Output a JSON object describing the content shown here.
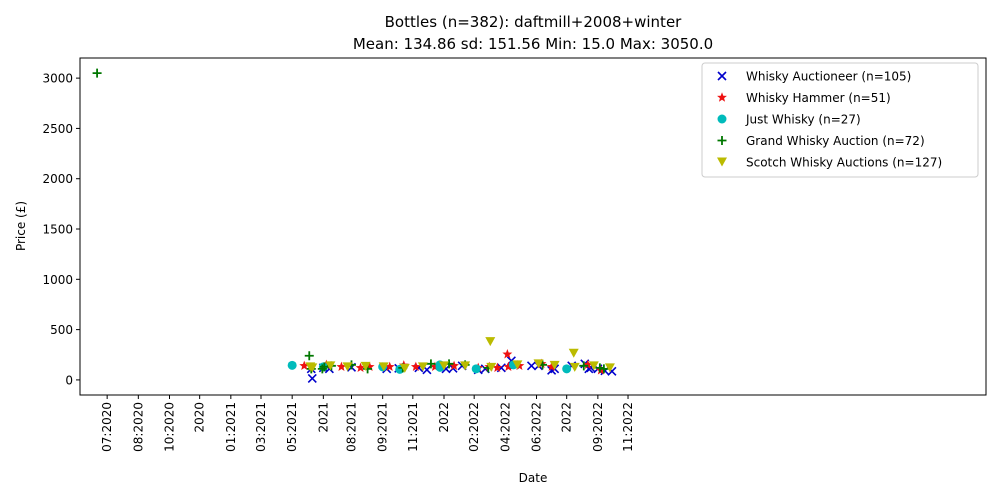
{
  "chart_data": {
    "type": "scatter",
    "title": "Bottles (n=382): daftmill+2008+winter",
    "subtitle": "Mean: 134.86   sd: 151.56   Min: 15.0   Max: 3050.0",
    "xlabel": "Date",
    "ylabel": "Price (£)",
    "ylim": [
      -150,
      3200
    ],
    "xlim": [
      "2020-06-04",
      "2022-11-22"
    ],
    "yticks": [
      0,
      500,
      1000,
      1500,
      2000,
      2500,
      3000
    ],
    "xticks": [
      {
        "date": "2020-07-01",
        "label": "07:2020"
      },
      {
        "date": "2020-08-01",
        "label": "08:2020"
      },
      {
        "date": "2020-09-01",
        "label": "10:2020"
      },
      {
        "date": "2020-10-01",
        "label": "2020"
      },
      {
        "date": "2020-11-01",
        "label": "01:2021"
      },
      {
        "date": "2020-12-01",
        "label": "03:2021"
      },
      {
        "date": "2021-01-01",
        "label": "05:2021"
      },
      {
        "date": "2021-02-01",
        "label": "2021"
      },
      {
        "date": "2021-03-01",
        "label": "08:2021"
      },
      {
        "date": "2021-04-01",
        "label": "09:2021"
      },
      {
        "date": "2021-05-01",
        "label": "11:2021"
      },
      {
        "date": "2021-06-01",
        "label": "2022"
      },
      {
        "date": "2021-07-01",
        "label": "02:2022"
      },
      {
        "date": "2021-08-01",
        "label": "04:2022"
      },
      {
        "date": "2021-09-01",
        "label": "06:2022"
      },
      {
        "date": "2021-10-01",
        "label": "2022"
      },
      {
        "date": "2021-11-01",
        "label": "09:2022"
      },
      {
        "date": "2021-12-01",
        "label": "11:2022"
      }
    ],
    "legend_position": "top-right",
    "grid": false,
    "series": [
      {
        "name": "Whisky Auctioneer (n=105)",
        "marker": "x",
        "color": "#0000cc",
        "points": [
          [
            "2021-01-21",
            15
          ],
          [
            "2021-01-20",
            110
          ],
          [
            "2021-02-01",
            120
          ],
          [
            "2021-02-07",
            110
          ],
          [
            "2021-03-01",
            125
          ],
          [
            "2021-04-05",
            110
          ],
          [
            "2021-04-17",
            115
          ],
          [
            "2021-05-07",
            120
          ],
          [
            "2021-05-15",
            100
          ],
          [
            "2021-06-03",
            110
          ],
          [
            "2021-06-10",
            115
          ],
          [
            "2021-06-19",
            140
          ],
          [
            "2021-07-05",
            100
          ],
          [
            "2021-07-12",
            110
          ],
          [
            "2021-07-28",
            120
          ],
          [
            "2021-08-07",
            190
          ],
          [
            "2021-08-10",
            150
          ],
          [
            "2021-08-27",
            140
          ],
          [
            "2021-09-03",
            140
          ],
          [
            "2021-09-16",
            95
          ],
          [
            "2021-09-19",
            110
          ],
          [
            "2021-10-06",
            140
          ],
          [
            "2021-10-19",
            160
          ],
          [
            "2021-10-23",
            110
          ],
          [
            "2021-10-25",
            120
          ],
          [
            "2021-11-01",
            110
          ],
          [
            "2021-11-08",
            90
          ],
          [
            "2021-11-15",
            85
          ]
        ]
      },
      {
        "name": "Whisky Hammer (n=51)",
        "marker": "star",
        "color": "#ee1111",
        "points": [
          [
            "2021-01-13",
            140
          ],
          [
            "2021-02-04",
            150
          ],
          [
            "2021-02-19",
            130
          ],
          [
            "2021-03-10",
            120
          ],
          [
            "2021-03-19",
            130
          ],
          [
            "2021-04-08",
            130
          ],
          [
            "2021-04-22",
            145
          ],
          [
            "2021-05-04",
            130
          ],
          [
            "2021-05-23",
            130
          ],
          [
            "2021-06-11",
            140
          ],
          [
            "2021-07-05",
            120
          ],
          [
            "2021-07-16",
            130
          ],
          [
            "2021-07-24",
            120
          ],
          [
            "2021-08-03",
            255
          ],
          [
            "2021-08-04",
            130
          ],
          [
            "2021-08-15",
            140
          ],
          [
            "2021-09-06",
            160
          ],
          [
            "2021-09-16",
            130
          ],
          [
            "2021-10-22",
            150
          ],
          [
            "2021-11-04",
            95
          ]
        ]
      },
      {
        "name": "Just Whisky (n=27)",
        "marker": "circle",
        "color": "#00bbbb",
        "points": [
          [
            "2021-01-01",
            145
          ],
          [
            "2021-02-01",
            130
          ],
          [
            "2021-04-01",
            130
          ],
          [
            "2021-04-18",
            105
          ],
          [
            "2021-05-28",
            150
          ],
          [
            "2021-05-28",
            125
          ],
          [
            "2021-07-03",
            110
          ],
          [
            "2021-08-09",
            150
          ],
          [
            "2021-10-01",
            110
          ]
        ]
      },
      {
        "name": "Grand Whisky Auction (n=72)",
        "marker": "plus",
        "color": "#007700",
        "points": [
          [
            "2020-06-21",
            3050
          ],
          [
            "2021-01-18",
            240
          ],
          [
            "2021-01-20",
            110
          ],
          [
            "2021-01-31",
            110
          ],
          [
            "2021-02-02",
            130
          ],
          [
            "2021-02-09",
            140
          ],
          [
            "2021-03-01",
            150
          ],
          [
            "2021-03-17",
            110
          ],
          [
            "2021-04-21",
            120
          ],
          [
            "2021-05-19",
            160
          ],
          [
            "2021-06-06",
            160
          ],
          [
            "2021-06-22",
            150
          ],
          [
            "2021-07-15",
            120
          ],
          [
            "2021-09-07",
            150
          ],
          [
            "2021-10-18",
            140
          ],
          [
            "2021-11-03",
            120
          ],
          [
            "2021-11-07",
            110
          ]
        ]
      },
      {
        "name": "Scotch Whisky Auctions (n=127)",
        "marker": "triangle-down",
        "color": "#bbbb00",
        "points": [
          [
            "2021-01-19",
            130
          ],
          [
            "2021-01-21",
            120
          ],
          [
            "2021-02-08",
            140
          ],
          [
            "2021-02-25",
            130
          ],
          [
            "2021-03-15",
            135
          ],
          [
            "2021-04-02",
            130
          ],
          [
            "2021-04-23",
            115
          ],
          [
            "2021-05-11",
            130
          ],
          [
            "2021-06-01",
            140
          ],
          [
            "2021-06-22",
            140
          ],
          [
            "2021-07-17",
            380
          ],
          [
            "2021-07-18",
            125
          ],
          [
            "2021-08-13",
            150
          ],
          [
            "2021-09-03",
            160
          ],
          [
            "2021-09-19",
            145
          ],
          [
            "2021-10-08",
            265
          ],
          [
            "2021-10-09",
            125
          ],
          [
            "2021-10-28",
            140
          ],
          [
            "2021-11-13",
            120
          ]
        ]
      }
    ]
  }
}
